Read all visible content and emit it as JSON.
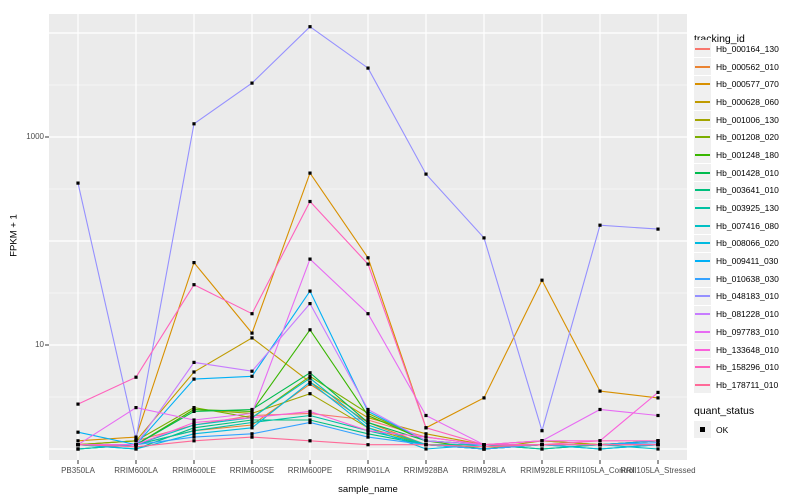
{
  "axes": {
    "x_title": "sample_name",
    "y_title": "FPKM + 1"
  },
  "legend": {
    "tracking_title": "tracking_id",
    "quant_title": "quant_status",
    "quant_label": "OK"
  },
  "colors": {
    "panel_background": "#EBEBEB",
    "gridline": "#FFFFFF",
    "axis_text": "#4D4D4D",
    "tick_mark": "#333333",
    "point": "#000000",
    "legend_key_background": "#F0F0F0"
  },
  "chart_data": {
    "type": "line",
    "title": "",
    "xlabel": "sample_name",
    "ylabel": "FPKM + 1",
    "y_scale": "log10",
    "ylim": [
      1,
      15000
    ],
    "y_ticks": [
      10,
      1000
    ],
    "grid": true,
    "legend_position": "right",
    "point_shape": "filled-black-square",
    "quant_status": "OK",
    "categories": [
      "PB350LA",
      "RRIM600LA",
      "RRIM600LE",
      "RRIM600SE",
      "RRIM600PE",
      "RRIM901LA",
      "RRIM928BA",
      "RRIM928LA",
      "RRIM928LE",
      "RRII105LA_Control",
      "RRII105LA_Stressed"
    ],
    "series": [
      {
        "name": "Hb_000164_130",
        "color": "#F8766D",
        "values": [
          1.1,
          1.2,
          1.7,
          2.1,
          2.2,
          1.9,
          1.3,
          1.1,
          1.1,
          1.1,
          1.2
        ]
      },
      {
        "name": "Hb_000562_010",
        "color": "#EA8331",
        "values": [
          1.1,
          1.1,
          1.5,
          1.7,
          4.2,
          1.8,
          1.1,
          1.0,
          1.1,
          1.1,
          1.1
        ]
      },
      {
        "name": "Hb_000577_070",
        "color": "#D89000",
        "values": [
          1.2,
          1.3,
          62,
          13,
          450,
          69,
          1.6,
          3.1,
          42,
          3.6,
          3.1
        ]
      },
      {
        "name": "Hb_000628_060",
        "color": "#C09B00",
        "values": [
          1.1,
          1.2,
          5.5,
          11.7,
          4.4,
          2.0,
          1.4,
          1.1,
          1.2,
          1.1,
          1.2
        ]
      },
      {
        "name": "Hb_001006_130",
        "color": "#A3A500",
        "values": [
          1.0,
          1.1,
          2.4,
          2.2,
          3.4,
          1.6,
          1.1,
          1.0,
          1.2,
          1.1,
          1.1
        ]
      },
      {
        "name": "Hb_001208_020",
        "color": "#7CAE00",
        "values": [
          1.1,
          1.2,
          2.5,
          2.0,
          5.0,
          2.2,
          1.2,
          1.1,
          1.1,
          1.1,
          1.1
        ]
      },
      {
        "name": "Hb_001248_180",
        "color": "#39B600",
        "values": [
          1.1,
          1.1,
          2.4,
          2.3,
          14,
          2.1,
          1.2,
          1.0,
          1.1,
          1.1,
          1.2
        ]
      },
      {
        "name": "Hb_001428_010",
        "color": "#00BB4E",
        "values": [
          1.0,
          1.1,
          2.3,
          2.4,
          5.4,
          1.8,
          1.2,
          1.1,
          1.0,
          1.1,
          1.1
        ]
      },
      {
        "name": "Hb_003641_010",
        "color": "#00BF7D",
        "values": [
          1.1,
          1.0,
          1.6,
          1.9,
          1.9,
          1.4,
          1.1,
          1.0,
          1.1,
          1.0,
          1.1
        ]
      },
      {
        "name": "Hb_003925_130",
        "color": "#00C1A3",
        "values": [
          1.1,
          1.1,
          1.5,
          1.8,
          2.1,
          1.5,
          1.1,
          1.1,
          1.0,
          1.1,
          1.1
        ]
      },
      {
        "name": "Hb_007416_080",
        "color": "#00BFC4",
        "values": [
          1.0,
          1.1,
          1.7,
          2.0,
          4.8,
          1.7,
          1.1,
          1.0,
          1.1,
          1.1,
          1.0
        ]
      },
      {
        "name": "Hb_008066_020",
        "color": "#00BAE0",
        "values": [
          1.1,
          1.0,
          1.4,
          1.6,
          4.4,
          1.6,
          1.0,
          1.1,
          1.1,
          1.0,
          1.1
        ]
      },
      {
        "name": "Hb_009411_030",
        "color": "#00B0F6",
        "values": [
          1.45,
          1.1,
          4.7,
          5.0,
          33,
          2.3,
          1.2,
          1.1,
          1.1,
          1.1,
          1.2
        ]
      },
      {
        "name": "Hb_010638_030",
        "color": "#35A2FF",
        "values": [
          1.1,
          1.1,
          1.3,
          1.4,
          1.8,
          1.3,
          1.1,
          1.0,
          1.1,
          1.1,
          1.15
        ]
      },
      {
        "name": "Hb_048183_010",
        "color": "#9590FF",
        "values": [
          360,
          1.25,
          1340,
          3300,
          11500,
          4600,
          440,
          107,
          1.5,
          142,
          130
        ]
      },
      {
        "name": "Hb_081228_010",
        "color": "#C77CFF",
        "values": [
          1.1,
          1.1,
          6.8,
          5.6,
          25,
          2.4,
          1.2,
          1.1,
          1.1,
          1.1,
          1.1
        ]
      },
      {
        "name": "Hb_097783_010",
        "color": "#E76BF3",
        "values": [
          1.1,
          2.5,
          1.9,
          2.2,
          67,
          20,
          2.1,
          1.1,
          1.2,
          2.4,
          2.1
        ]
      },
      {
        "name": "Hb_133648_010",
        "color": "#FA62DB",
        "values": [
          1.1,
          1.1,
          1.8,
          2.0,
          2.3,
          1.5,
          1.3,
          1.1,
          1.2,
          1.2,
          3.5
        ]
      },
      {
        "name": "Hb_158296_010",
        "color": "#FF62BC",
        "values": [
          2.7,
          4.9,
          38,
          20,
          240,
          60,
          1.6,
          1.1,
          1.1,
          1.2,
          1.2
        ]
      },
      {
        "name": "Hb_178711_010",
        "color": "#FF6A98",
        "values": [
          1.1,
          1.05,
          1.2,
          1.3,
          1.2,
          1.1,
          1.1,
          1.05,
          1.1,
          1.1,
          1.1
        ]
      }
    ]
  }
}
